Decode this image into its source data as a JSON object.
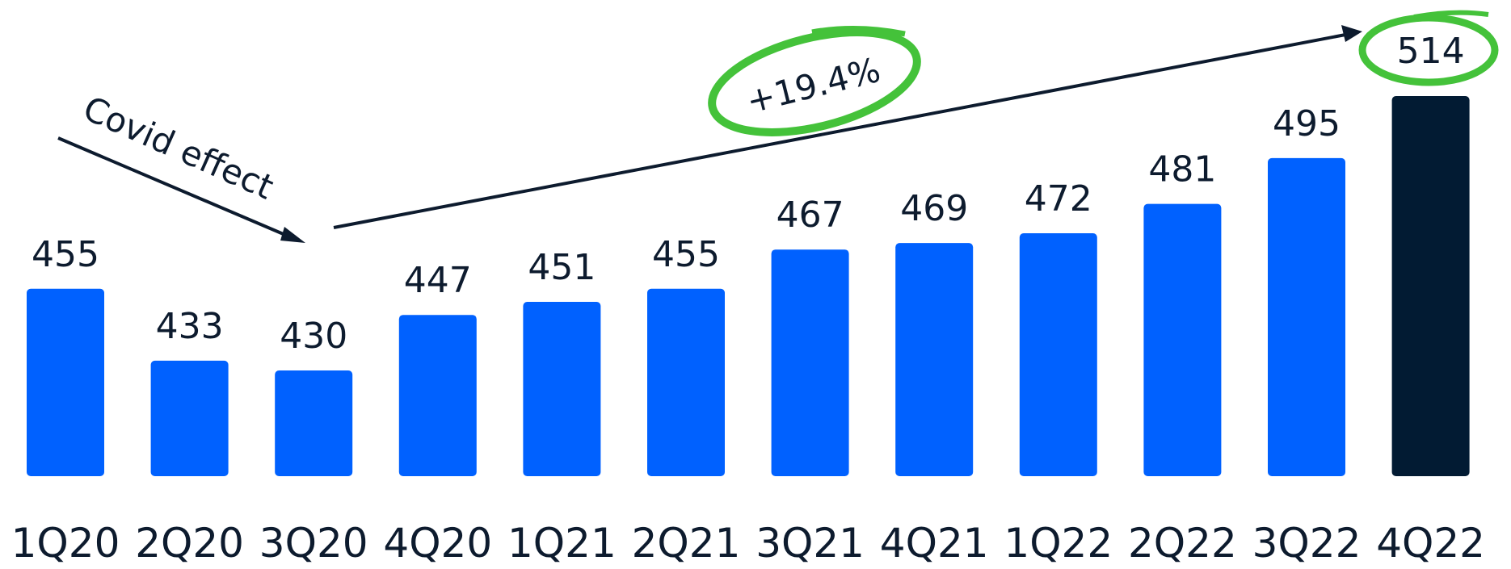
{
  "chart_data": {
    "type": "bar",
    "categories": [
      "1Q20",
      "2Q20",
      "3Q20",
      "4Q20",
      "1Q21",
      "2Q21",
      "3Q21",
      "4Q21",
      "1Q22",
      "2Q22",
      "3Q22",
      "4Q22"
    ],
    "values": [
      455,
      433,
      430,
      447,
      451,
      455,
      467,
      469,
      472,
      481,
      495,
      514
    ],
    "value_labels": [
      "455",
      "433",
      "430",
      "447",
      "451",
      "455",
      "467",
      "469",
      "472",
      "481",
      "495",
      "514"
    ],
    "bar_color": "#0061ff",
    "highlight_color": "#021b33",
    "highlight_index": 11,
    "circle_color": "#44c23a",
    "annotations": {
      "covid": "Covid effect",
      "growth": "+19.4%"
    },
    "title": "",
    "xlabel": "",
    "ylabel": ""
  }
}
